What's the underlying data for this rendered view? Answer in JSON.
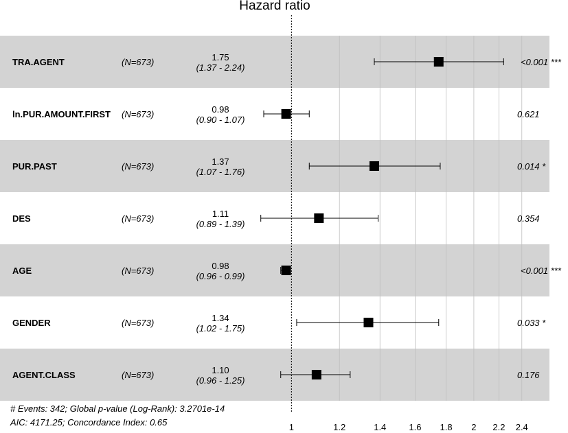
{
  "chart_data": {
    "type": "forest",
    "title": "Hazard ratio",
    "reference_line": 1,
    "x_scale": "log",
    "xlim": [
      0.87,
      2.55
    ],
    "x_ticks": [
      1,
      1.2,
      1.4,
      1.6,
      1.8,
      2,
      2.2,
      2.4
    ],
    "x_tick_labels": [
      "1",
      "1.2",
      "1.4",
      "1.6",
      "1.8",
      "2",
      "2.2",
      "2.4"
    ],
    "rows": [
      {
        "variable": "TRA.AGENT",
        "n": "(N=673)",
        "hr": 1.75,
        "hr_label": "1.75",
        "ci_low": 1.37,
        "ci_high": 2.24,
        "ci_label": "(1.37 - 2.24)",
        "p_label": "<0.001 ***",
        "shaded": true
      },
      {
        "variable": "ln.PUR.AMOUNT.FIRST",
        "n": "(N=673)",
        "hr": 0.98,
        "hr_label": "0.98",
        "ci_low": 0.9,
        "ci_high": 1.07,
        "ci_label": "(0.90 - 1.07)",
        "p_label": "0.621",
        "shaded": false
      },
      {
        "variable": "PUR.PAST",
        "n": "(N=673)",
        "hr": 1.37,
        "hr_label": "1.37",
        "ci_low": 1.07,
        "ci_high": 1.76,
        "ci_label": "(1.07 - 1.76)",
        "p_label": "0.014 *",
        "shaded": true
      },
      {
        "variable": "DES",
        "n": "(N=673)",
        "hr": 1.11,
        "hr_label": "1.11",
        "ci_low": 0.89,
        "ci_high": 1.39,
        "ci_label": "(0.89 - 1.39)",
        "p_label": "0.354",
        "shaded": false
      },
      {
        "variable": "AGE",
        "n": "(N=673)",
        "hr": 0.98,
        "hr_label": "0.98",
        "ci_low": 0.96,
        "ci_high": 0.99,
        "ci_label": "(0.96 - 0.99)",
        "p_label": "<0.001 ***",
        "shaded": true
      },
      {
        "variable": "GENDER",
        "n": "(N=673)",
        "hr": 1.34,
        "hr_label": "1.34",
        "ci_low": 1.02,
        "ci_high": 1.75,
        "ci_label": "(1.02 - 1.75)",
        "p_label": "0.033 *",
        "shaded": false
      },
      {
        "variable": "AGENT.CLASS",
        "n": "(N=673)",
        "hr": 1.1,
        "hr_label": "1.10",
        "ci_low": 0.96,
        "ci_high": 1.25,
        "ci_label": "(0.96 - 1.25)",
        "p_label": "0.176",
        "shaded": true
      }
    ],
    "footnote_line1": "# Events: 342; Global p-value (Log-Rank): 3.2701e-14",
    "footnote_line2": "AIC: 4171.25; Concordance Index: 0.65",
    "colors": {
      "shade": "#d3d3d3",
      "grid": "#bebebe",
      "marker": "#000000",
      "background": "#ffffff"
    }
  }
}
